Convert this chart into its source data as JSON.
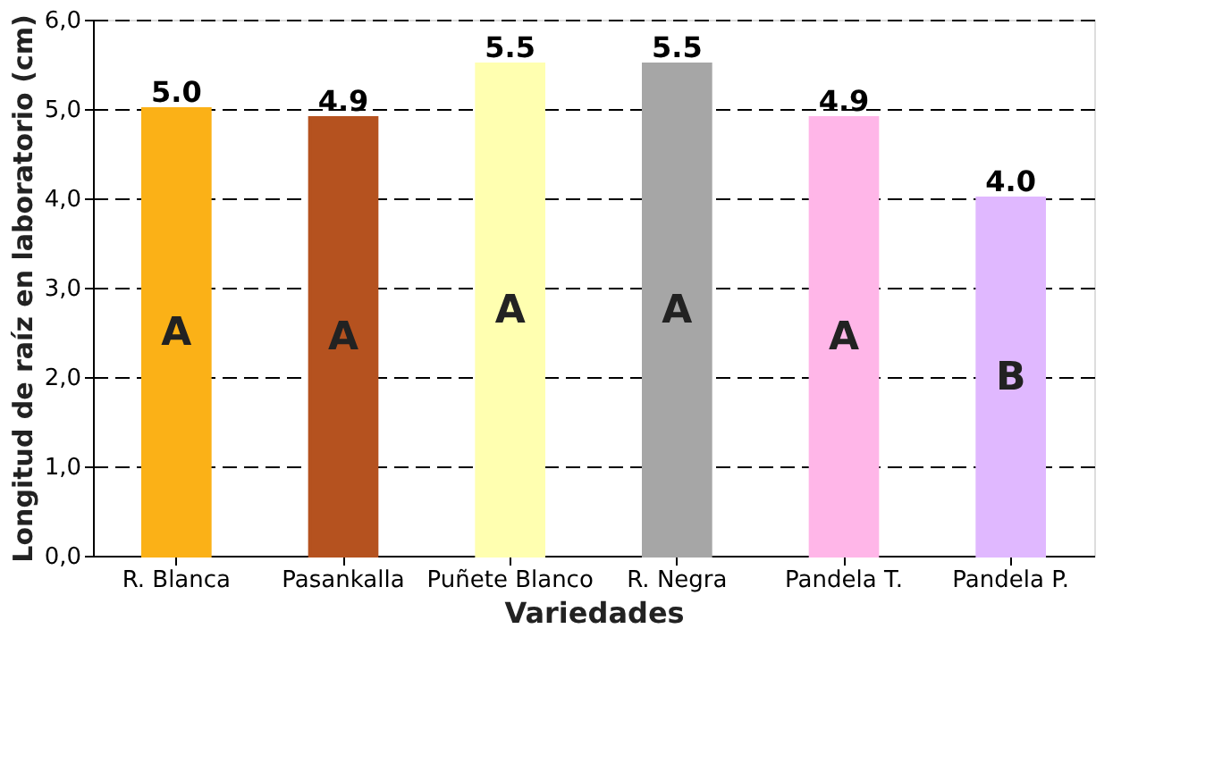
{
  "chart_data": {
    "type": "bar",
    "xlabel": "Variedades",
    "ylabel": "Longitud de raíz en laboratorio (cm)",
    "categories": [
      "R. Blanca",
      "Pasankalla",
      "Puñete Blanco",
      "R. Negra",
      "Pandela T.",
      "Pandela P."
    ],
    "values": [
      5.0,
      4.9,
      5.5,
      5.5,
      4.9,
      4.0
    ],
    "value_labels": [
      "5.0",
      "4.9",
      "5.5",
      "5.5",
      "4.9",
      "4.0"
    ],
    "colors": [
      "#fbb117",
      "#b5521f",
      "#ffffb0",
      "#a6a6a6",
      "#ffb6e8",
      "#e0b8ff"
    ],
    "ylim": [
      0,
      6
    ],
    "yticks": [
      {
        "value": 0,
        "label": "0,0"
      },
      {
        "value": 1,
        "label": "1,0"
      },
      {
        "value": 2,
        "label": "2,0"
      },
      {
        "value": 3,
        "label": "3,0"
      },
      {
        "value": 4,
        "label": "4,0"
      },
      {
        "value": 5,
        "label": "5,0"
      },
      {
        "value": 6,
        "label": "6,0"
      }
    ],
    "grid": "y",
    "line_style": "dashed",
    "annotations": [
      "A",
      "A",
      "A",
      "A",
      "A",
      "B"
    ]
  }
}
